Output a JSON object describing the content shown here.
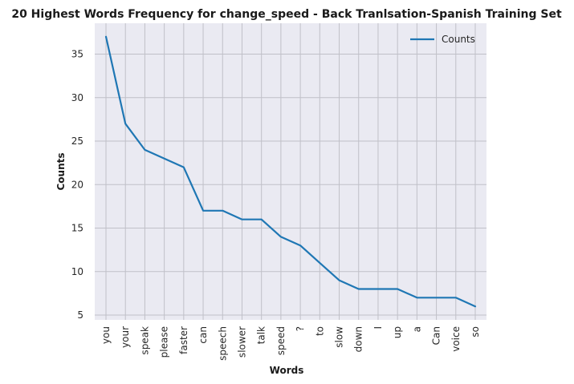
{
  "chart_data": {
    "type": "line",
    "title": "20 Highest Words Frequency for change_speed - Back Tranlsation-Spanish Training Set",
    "xlabel": "Words",
    "ylabel": "Counts",
    "categories": [
      "you",
      "your",
      "speak",
      "please",
      "faster",
      "can",
      "speech",
      "slower",
      "talk",
      "speed",
      "?",
      "to",
      "slow",
      "down",
      "I",
      "up",
      "a",
      "Can",
      "voice",
      "so"
    ],
    "series": [
      {
        "name": "Counts",
        "values": [
          37,
          27,
          24,
          23,
          22,
          17,
          17,
          16,
          16,
          14,
          13,
          11,
          9,
          8,
          8,
          8,
          7,
          7,
          7,
          6
        ],
        "color": "#1f77b4"
      }
    ],
    "yticks": [
      5,
      10,
      15,
      20,
      25,
      30,
      35
    ],
    "ylim": [
      4.45,
      38.55
    ],
    "grid": true,
    "legend": "top-right",
    "background": "#eaeaf2",
    "grid_color": "#c0c0c8"
  }
}
